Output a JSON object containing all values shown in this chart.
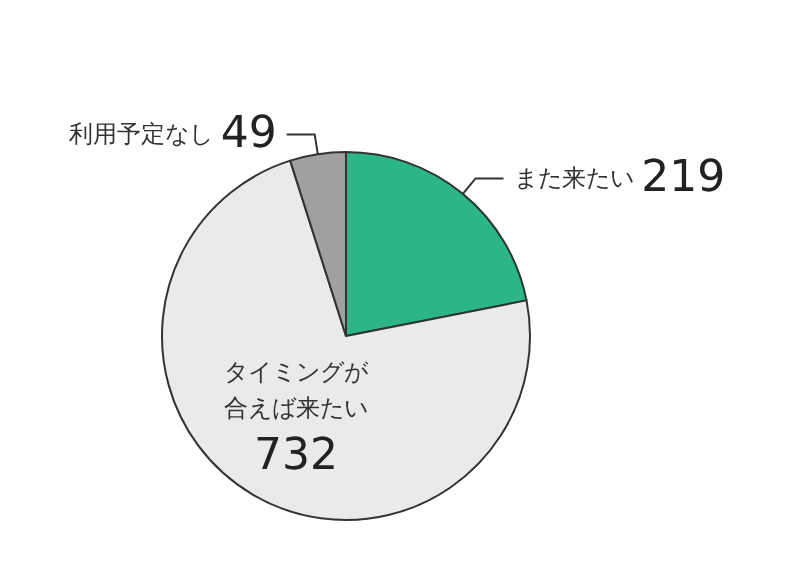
{
  "chart_data": {
    "type": "pie",
    "categories": [
      "また来たい",
      "タイミングが合えば来たい",
      "利用予定なし"
    ],
    "values": [
      219,
      732,
      49
    ],
    "colors": [
      "#2db58a",
      "#e9ebeb",
      "#a0a0a0"
    ],
    "data_labels": true
  }
}
